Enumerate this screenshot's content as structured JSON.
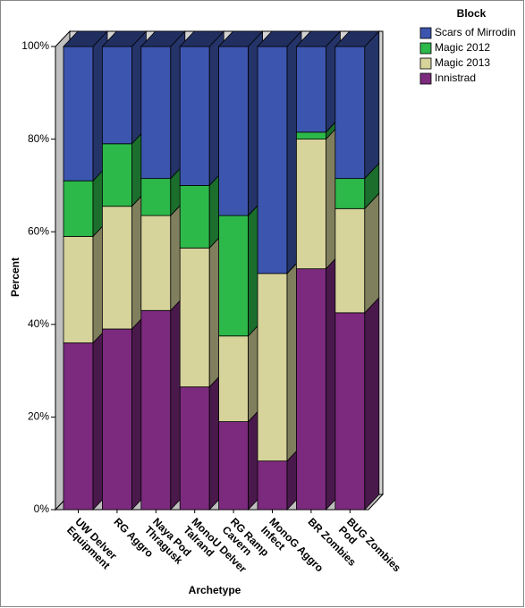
{
  "chart_data": {
    "type": "stacked_bar_3d",
    "x_label": "Archetype",
    "y_label": "Percent",
    "categories": [
      "UW Delver\nEquipment",
      "RG Aggro",
      "Naya Pod\nThragusk",
      "MonoU Delver\nTalrand",
      "RG Ramp\nCavern",
      "MonoG Aggro\nInfect",
      "BR Zombies",
      "BUG Zombies\nPod"
    ],
    "legend_title": "Block",
    "legend_position": "right",
    "series": [
      {
        "name": "Innistrad",
        "color": "#7b2a7e",
        "values": [
          36,
          39,
          43,
          26.5,
          19,
          10.5,
          52,
          42.5
        ]
      },
      {
        "name": "Magic 2013",
        "color": "#d6d39b",
        "values": [
          23,
          26.5,
          20.5,
          30,
          18.5,
          40.5,
          28,
          22.5
        ]
      },
      {
        "name": "Magic 2012",
        "color": "#2db84a",
        "values": [
          12,
          13.5,
          8,
          13.5,
          26,
          0,
          1.5,
          6.5
        ]
      },
      {
        "name": "Scars of Mirrodin",
        "color": "#3c55ae",
        "values": [
          29,
          21,
          28.5,
          30,
          36.5,
          49,
          18.5,
          28.5
        ]
      }
    ],
    "ylim": [
      0,
      100
    ],
    "yticks": [
      {
        "value": 0,
        "label": "0%"
      },
      {
        "value": 20,
        "label": "20%"
      },
      {
        "value": 40,
        "label": "40%"
      },
      {
        "value": 60,
        "label": "60%"
      },
      {
        "value": 80,
        "label": "80%"
      },
      {
        "value": 100,
        "label": "100%"
      }
    ]
  }
}
